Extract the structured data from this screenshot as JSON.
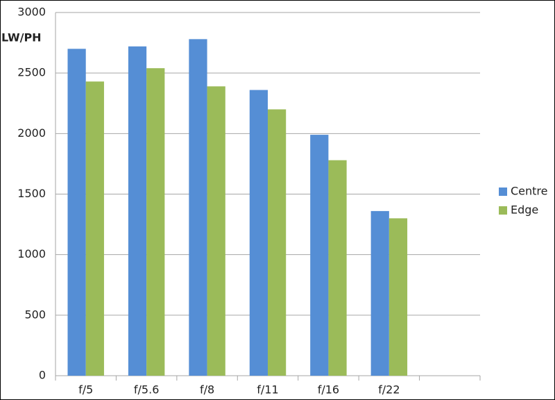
{
  "chart_data": {
    "type": "bar",
    "y_label": "LW/PH",
    "categories": [
      "f/5",
      "f/5.6",
      "f/8",
      "f/11",
      "f/16",
      "f/22",
      null
    ],
    "series": [
      {
        "name": "Centre",
        "color": "#558ed5",
        "values": [
          2700,
          2720,
          2780,
          2360,
          1990,
          1360,
          null
        ]
      },
      {
        "name": "Edge",
        "color": "#9bbb59",
        "values": [
          2430,
          2540,
          2390,
          2200,
          1780,
          1300,
          null
        ]
      }
    ],
    "ylim": [
      0,
      3000
    ],
    "yticks": [
      0,
      500,
      1000,
      1500,
      2000,
      2500,
      3000
    ],
    "grid": true,
    "legend": "right"
  }
}
